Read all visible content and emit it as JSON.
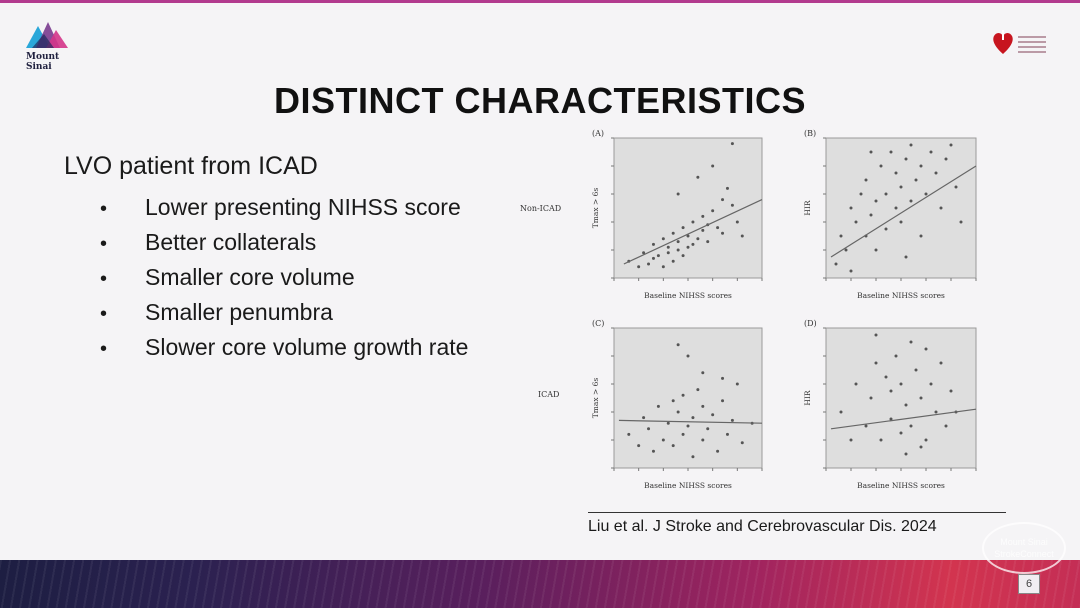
{
  "slide": {
    "title": "DISTINCT CHARACTERISTICS",
    "lead": "LVO patient from ICAD",
    "bullets": [
      {
        "dot": "•",
        "text": "Lower presenting NIHSS score"
      },
      {
        "dot": "•",
        "text": "Better collaterals"
      },
      {
        "dot": "•",
        "text": "Smaller core volume"
      },
      {
        "dot": "•",
        "text": "Smaller penumbra"
      },
      {
        "dot": "•",
        "text": "Slower core volume growth rate"
      }
    ],
    "citation": "Liu et al. J Stroke and Cerebrovascular Dis. 2024",
    "slide_number": "6"
  },
  "logos": {
    "left_text": "Mount\nSinai",
    "watermark": "Mount Sinai\nStrokeConnect"
  },
  "figure": {
    "row_labels": {
      "top": "Non-ICAD",
      "bottom": "ICAD"
    }
  },
  "colors": {
    "accent_top": "#b23a8e",
    "band_start": "#1d1e42",
    "band_end": "#d2344f",
    "plot_bg": "#dedede"
  },
  "chart_data": [
    {
      "type": "scatter",
      "panel_label": "(A)",
      "xlabel": "Baseline NIHSS scores",
      "ylabel": "Tmax > 6s",
      "xlim": [
        0,
        30
      ],
      "ylim": [
        0,
        250
      ],
      "x": [
        3,
        5,
        6,
        7,
        8,
        8,
        9,
        10,
        10,
        11,
        11,
        12,
        12,
        13,
        13,
        14,
        14,
        15,
        15,
        16,
        16,
        17,
        18,
        18,
        19,
        19,
        20,
        21,
        22,
        22,
        23,
        24,
        25,
        26,
        13,
        17,
        20,
        24
      ],
      "y": [
        30,
        20,
        45,
        25,
        35,
        60,
        40,
        20,
        70,
        45,
        55,
        30,
        80,
        50,
        65,
        40,
        90,
        55,
        75,
        60,
        100,
        70,
        85,
        110,
        65,
        95,
        120,
        90,
        140,
        80,
        160,
        130,
        100,
        75,
        150,
        180,
        200,
        240
      ],
      "trend": [
        [
          2,
          25
        ],
        [
          30,
          140
        ]
      ]
    },
    {
      "type": "scatter",
      "panel_label": "(B)",
      "xlabel": "Baseline NIHSS scores",
      "ylabel": "HIR",
      "xlim": [
        0,
        30
      ],
      "ylim": [
        0,
        1
      ],
      "x": [
        2,
        3,
        4,
        5,
        5,
        6,
        7,
        8,
        8,
        9,
        10,
        10,
        11,
        12,
        12,
        13,
        14,
        14,
        15,
        15,
        16,
        17,
        17,
        18,
        19,
        19,
        20,
        21,
        22,
        23,
        24,
        25,
        26,
        27,
        9,
        16
      ],
      "y": [
        0.1,
        0.3,
        0.2,
        0.5,
        0.05,
        0.4,
        0.6,
        0.3,
        0.7,
        0.45,
        0.55,
        0.2,
        0.8,
        0.35,
        0.6,
        0.9,
        0.5,
        0.75,
        0.4,
        0.65,
        0.85,
        0.55,
        0.95,
        0.7,
        0.3,
        0.8,
        0.6,
        0.9,
        0.75,
        0.5,
        0.85,
        0.95,
        0.65,
        0.4,
        0.9,
        0.15
      ],
      "trend": [
        [
          1,
          0.15
        ],
        [
          30,
          0.8
        ]
      ]
    },
    {
      "type": "scatter",
      "panel_label": "(C)",
      "xlabel": "Baseline NIHSS scores",
      "ylabel": "Tmax > 6s",
      "xlim": [
        0,
        30
      ],
      "ylim": [
        0,
        250
      ],
      "x": [
        3,
        5,
        6,
        7,
        8,
        9,
        10,
        11,
        12,
        12,
        13,
        14,
        14,
        15,
        16,
        16,
        17,
        18,
        18,
        19,
        20,
        21,
        22,
        23,
        24,
        25,
        26,
        13,
        15,
        18,
        22,
        28
      ],
      "y": [
        60,
        40,
        90,
        70,
        30,
        110,
        50,
        80,
        120,
        40,
        100,
        60,
        130,
        75,
        20,
        90,
        140,
        50,
        110,
        70,
        95,
        30,
        120,
        60,
        85,
        150,
        45,
        220,
        200,
        170,
        160,
        80
      ],
      "trend": [
        [
          1,
          85
        ],
        [
          30,
          80
        ]
      ]
    },
    {
      "type": "scatter",
      "panel_label": "(D)",
      "xlabel": "Baseline NIHSS scores",
      "ylabel": "HIR",
      "xlim": [
        0,
        30
      ],
      "ylim": [
        0,
        1
      ],
      "x": [
        3,
        5,
        6,
        8,
        9,
        10,
        11,
        12,
        13,
        13,
        14,
        15,
        15,
        16,
        17,
        17,
        18,
        19,
        20,
        20,
        21,
        22,
        23,
        24,
        25,
        10,
        16,
        19,
        26
      ],
      "y": [
        0.4,
        0.2,
        0.6,
        0.3,
        0.5,
        0.75,
        0.2,
        0.65,
        0.35,
        0.55,
        0.8,
        0.25,
        0.6,
        0.45,
        0.9,
        0.3,
        0.7,
        0.5,
        0.85,
        0.2,
        0.6,
        0.4,
        0.75,
        0.3,
        0.55,
        0.95,
        0.1,
        0.15,
        0.4
      ],
      "trend": [
        [
          1,
          0.28
        ],
        [
          30,
          0.42
        ]
      ]
    }
  ]
}
